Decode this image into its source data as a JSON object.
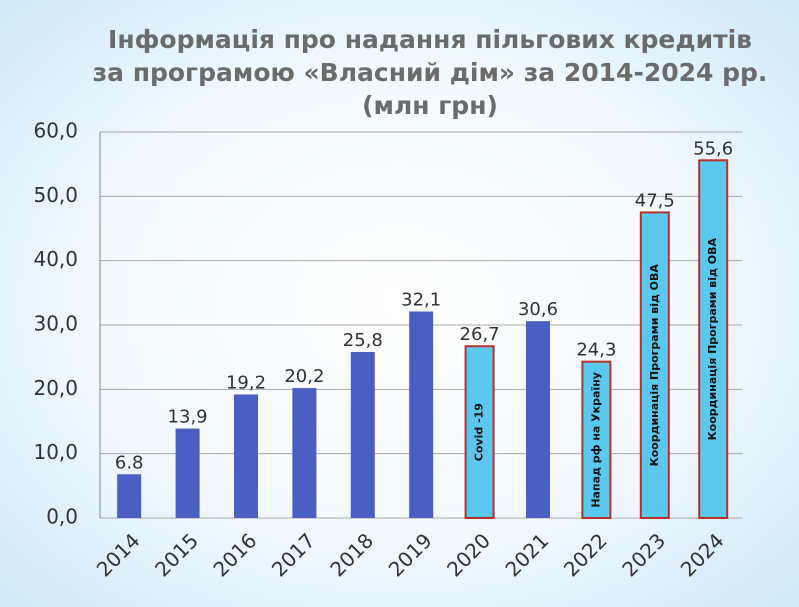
{
  "chart_data": {
    "type": "bar",
    "title": [
      "Інформація про надання пільгових кредитів",
      "за програмою «Власний дім» за 2014-2024 рр.",
      "(млн грн)"
    ],
    "categories": [
      "2014",
      "2015",
      "2016",
      "2017",
      "2018",
      "2019",
      "2020",
      "2021",
      "2022",
      "2023",
      "2024"
    ],
    "values": [
      6.8,
      13.9,
      19.2,
      20.2,
      25.8,
      32.1,
      26.7,
      30.6,
      24.3,
      47.5,
      55.6
    ],
    "value_labels": [
      "6.8",
      "13,9",
      "19,2",
      "20,2",
      "25,8",
      "32,1",
      "26,7",
      "30,6",
      "24,3",
      "47,5",
      "55,6"
    ],
    "colors": [
      "#4a5fc1",
      "#4a5fc1",
      "#4a5fc1",
      "#4a5fc1",
      "#4a5fc1",
      "#4a5fc1",
      "#5bc8f0",
      "#4a5fc1",
      "#5bc8f0",
      "#5bc8f0",
      "#5bc8f0"
    ],
    "border_colors": [
      null,
      null,
      null,
      null,
      null,
      null,
      "#b8302a",
      null,
      "#b8302a",
      "#b8302a",
      "#b8302a"
    ],
    "annotations": [
      null,
      null,
      null,
      null,
      null,
      null,
      "Covid -19",
      null,
      "Напад рф на Україну",
      "Координація Програми від ОВА",
      "Координація Програми від ОВА"
    ],
    "ylim": [
      0,
      60
    ],
    "yticks": [
      {
        "value": 0,
        "label": "0,0"
      },
      {
        "value": 10,
        "label": "10,0"
      },
      {
        "value": 20,
        "label": "20,0"
      },
      {
        "value": 30,
        "label": "30,0"
      },
      {
        "value": 40,
        "label": "40,0"
      },
      {
        "value": 50,
        "label": "50,0"
      },
      {
        "value": 60,
        "label": "60,0"
      }
    ],
    "grid": true
  }
}
